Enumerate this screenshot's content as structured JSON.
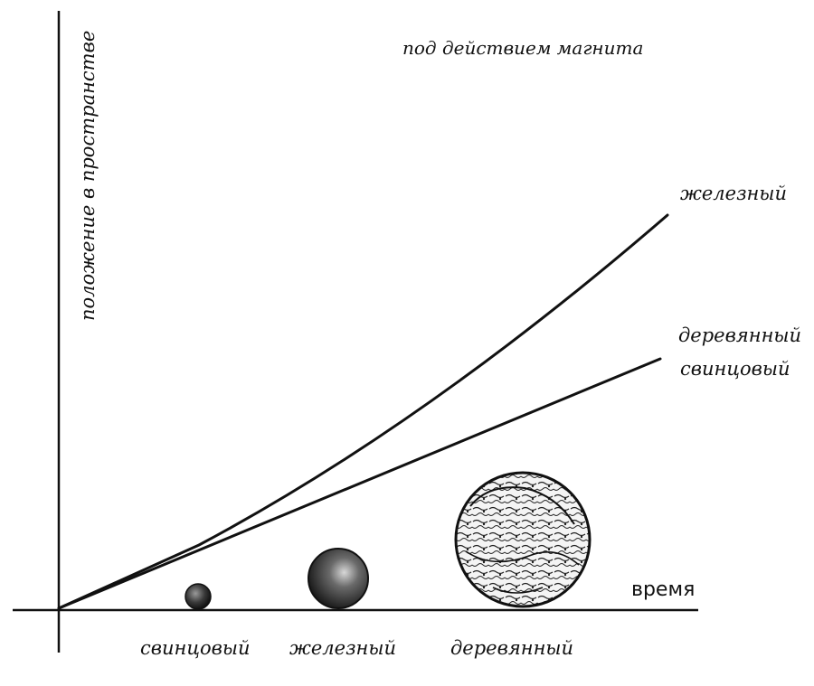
{
  "diagram": {
    "title": "под действием магнита",
    "y_axis_label": "положение в пространстве",
    "x_axis_label": "время",
    "lines": [
      {
        "label": "железный"
      },
      {
        "label": "деревянный"
      },
      {
        "label": "свинцовый"
      }
    ],
    "balls": [
      {
        "label": "свинцовый"
      },
      {
        "label": "железный"
      },
      {
        "label": "деревянный"
      }
    ],
    "colors": {
      "ink": "#111111",
      "paper": "#ffffff"
    }
  }
}
